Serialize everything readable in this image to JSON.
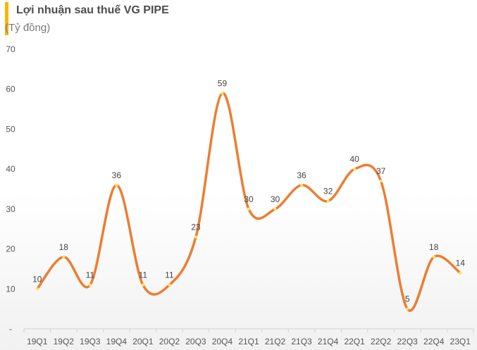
{
  "header": {
    "title": "Lợi nhuận sau thuế VG PIPE",
    "subtitle": "(Tỷ đồng)"
  },
  "colors": {
    "accent_bar": "#f5b800",
    "line": "#ed7d31",
    "marker": "#ffe45c"
  },
  "chart_data": {
    "type": "line",
    "smooth": true,
    "title": "Lợi nhuận sau thuế VG PIPE",
    "ylabel": "(Tỷ đồng)",
    "xlabel": "",
    "ylim": [
      0,
      70
    ],
    "yticks": [
      {
        "value": 0,
        "label": "-"
      },
      {
        "value": 10,
        "label": "10"
      },
      {
        "value": 20,
        "label": "20"
      },
      {
        "value": 30,
        "label": "30"
      },
      {
        "value": 40,
        "label": "40"
      },
      {
        "value": 50,
        "label": "50"
      },
      {
        "value": 60,
        "label": "60"
      },
      {
        "value": 70,
        "label": "70"
      }
    ],
    "grid": false,
    "legend": "none",
    "categories": [
      "19Q1",
      "19Q2",
      "19Q3",
      "19Q4",
      "20Q1",
      "20Q2",
      "20Q3",
      "20Q4",
      "21Q1",
      "21Q2",
      "21Q3",
      "21Q4",
      "22Q1",
      "22Q2",
      "22Q3",
      "22Q4",
      "23Q1"
    ],
    "series": [
      {
        "values": [
          10,
          18,
          11,
          36,
          11,
          11,
          23,
          59,
          30,
          30,
          36,
          32,
          40,
          37,
          5,
          18,
          14
        ],
        "data_labels": [
          "10",
          "18",
          "11",
          "36",
          "11",
          "11",
          "23",
          "59",
          "30",
          "30",
          "36",
          "32",
          "40",
          "37",
          "5",
          "18",
          "14"
        ]
      }
    ]
  }
}
